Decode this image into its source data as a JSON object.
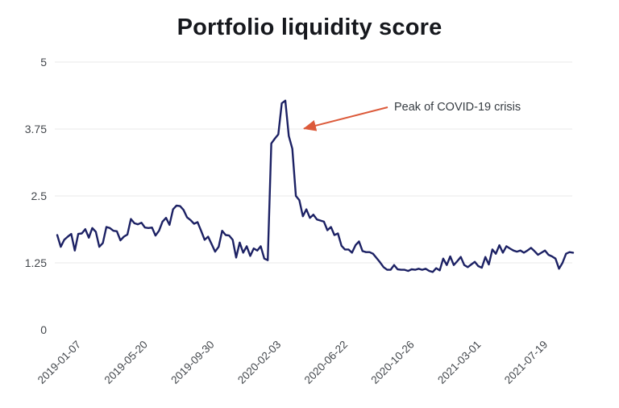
{
  "title": "Portfolio liquidity score",
  "chart_data": {
    "type": "line",
    "title": "Portfolio liquidity score",
    "legend": "none",
    "grid": "horizontal gridlines only, no zero baseline",
    "x_axis": {
      "tick_labels": [
        "2019-01-07",
        "2019-05-20",
        "2019-09-30",
        "2020-02-03",
        "2020-06-22",
        "2020-10-26",
        "2021-03-01",
        "2021-07-19"
      ],
      "tick_indices": [
        6,
        25,
        44,
        63,
        82,
        101,
        120,
        139
      ],
      "label_rotation_deg": -45
    },
    "y_axis": {
      "tick_labels": [
        "5",
        "3.75",
        "2.5",
        "1.25",
        "0"
      ],
      "tick_values": [
        5,
        3.75,
        2.5,
        1.25,
        0
      ],
      "range": [
        0,
        5
      ],
      "gridlines_at": [
        5,
        3.75,
        2.5,
        1.25
      ]
    },
    "series": [
      {
        "name": "portfolio liquidity score",
        "values": [
          1.77,
          1.55,
          1.68,
          1.74,
          1.79,
          1.48,
          1.79,
          1.8,
          1.88,
          1.72,
          1.9,
          1.83,
          1.55,
          1.62,
          1.92,
          1.9,
          1.85,
          1.84,
          1.67,
          1.74,
          1.78,
          2.07,
          1.99,
          1.97,
          2.0,
          1.91,
          1.9,
          1.91,
          1.76,
          1.85,
          2.02,
          2.09,
          1.96,
          2.25,
          2.32,
          2.31,
          2.24,
          2.1,
          2.05,
          1.98,
          2.01,
          1.85,
          1.68,
          1.74,
          1.6,
          1.46,
          1.55,
          1.85,
          1.77,
          1.76,
          1.68,
          1.35,
          1.63,
          1.44,
          1.56,
          1.38,
          1.52,
          1.48,
          1.56,
          1.33,
          1.3,
          3.48,
          3.57,
          3.65,
          4.23,
          4.28,
          3.62,
          3.38,
          2.5,
          2.42,
          2.12,
          2.25,
          2.09,
          2.15,
          2.06,
          2.04,
          2.02,
          1.86,
          1.92,
          1.77,
          1.8,
          1.57,
          1.5,
          1.5,
          1.44,
          1.58,
          1.65,
          1.47,
          1.45,
          1.45,
          1.42,
          1.34,
          1.26,
          1.17,
          1.12,
          1.12,
          1.21,
          1.13,
          1.12,
          1.12,
          1.1,
          1.13,
          1.12,
          1.14,
          1.12,
          1.14,
          1.1,
          1.08,
          1.15,
          1.11,
          1.33,
          1.21,
          1.37,
          1.21,
          1.28,
          1.36,
          1.21,
          1.17,
          1.22,
          1.27,
          1.19,
          1.16,
          1.36,
          1.22,
          1.5,
          1.42,
          1.58,
          1.44,
          1.56,
          1.52,
          1.48,
          1.46,
          1.48,
          1.44,
          1.48,
          1.53,
          1.47,
          1.4,
          1.44,
          1.48,
          1.4,
          1.37,
          1.33,
          1.14,
          1.25,
          1.42,
          1.45,
          1.44
        ]
      }
    ],
    "annotation": {
      "text": "Peak of COVID-19 crisis",
      "peak_value": 4.28,
      "peak_index": 65
    },
    "colors": {
      "line": "#1c2164",
      "grid": "#e8e8e8",
      "axis_labels": "#43474c",
      "title": "#16181d",
      "annotation_text": "#363c42",
      "annotation_arrow": "#dc5a3a",
      "background": "#ffffff"
    }
  }
}
